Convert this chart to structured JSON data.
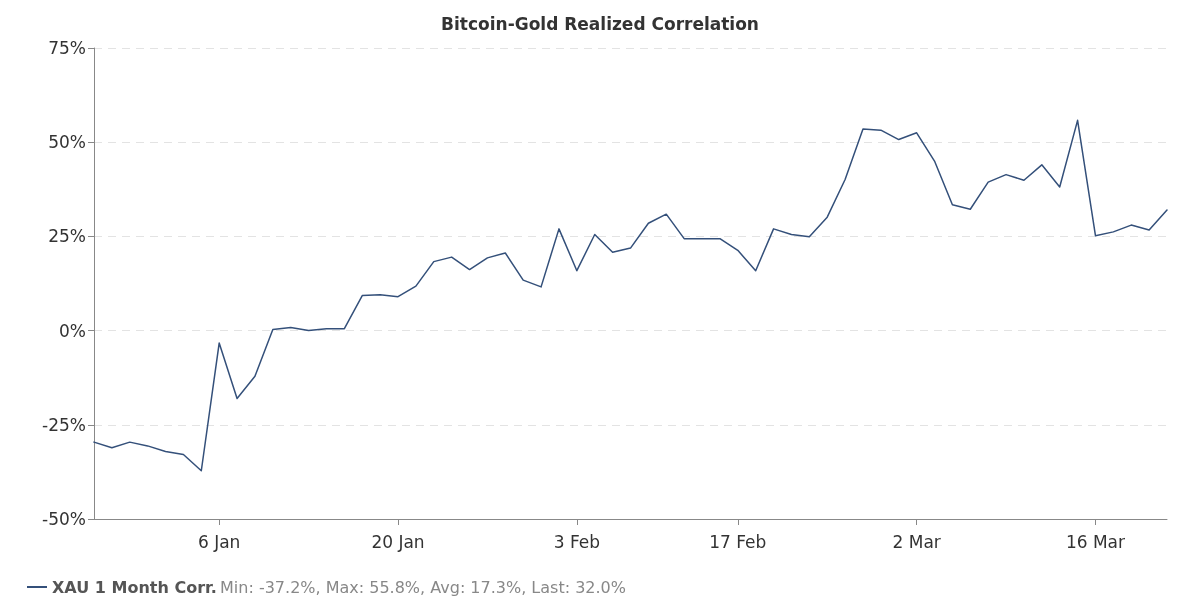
{
  "chart_data": {
    "type": "line",
    "title": "Bitcoin-Gold Realized Correlation",
    "categories": [
      null,
      null,
      null,
      null,
      null,
      null,
      null,
      "6 Jan",
      null,
      null,
      null,
      null,
      null,
      null,
      null,
      null,
      null,
      "20 Jan",
      null,
      null,
      null,
      null,
      null,
      null,
      null,
      null,
      null,
      "3 Feb",
      null,
      null,
      null,
      null,
      null,
      null,
      null,
      null,
      "17 Feb",
      null,
      null,
      null,
      null,
      null,
      null,
      null,
      null,
      null,
      "2 Mar",
      null,
      null,
      null,
      null,
      null,
      null,
      null,
      null,
      null,
      "16 Mar",
      null,
      null,
      null,
      null
    ],
    "series": [
      {
        "name": "XAU 1 Month Corr.",
        "color": "#34507a",
        "values": [
          -29.6,
          -31.1,
          -29.6,
          -30.6,
          -32.1,
          -32.9,
          -37.2,
          -3.3,
          -18.0,
          -12.1,
          0.3,
          0.8,
          0,
          0.5,
          0.5,
          9.3,
          9.5,
          9.0,
          11.8,
          18.3,
          19.5,
          16.2,
          19.3,
          20.6,
          13.4,
          11.6,
          27.0,
          15.9,
          25.5,
          20.8,
          21.9,
          28.5,
          30.9,
          24.4,
          24.4,
          24.4,
          21.3,
          15.9,
          27.0,
          25.5,
          24.9,
          30.1,
          40.1,
          53.5,
          53.2,
          50.7,
          52.5,
          45.0,
          33.4,
          32.2,
          39.4,
          41.4,
          39.9,
          44.0,
          38.1,
          55.8,
          25.2,
          26.2,
          28.0,
          26.7,
          32.0
        ]
      }
    ],
    "ylim": [
      -50,
      75
    ],
    "yticks": [
      {
        "value": -50,
        "label": "-50%"
      },
      {
        "value": -25,
        "label": "-25%"
      },
      {
        "value": 0,
        "label": "0%"
      },
      {
        "value": 25,
        "label": "25%"
      },
      {
        "value": 50,
        "label": "50%"
      },
      {
        "value": 75,
        "label": "75%"
      }
    ],
    "grid": "y",
    "legend": "bottom left",
    "marker": "none",
    "line_style": "solid",
    "annotations": [
      "Min: -37.2%, Max: 55.8%, Avg: 17.3%, Last: 32.0%"
    ]
  }
}
